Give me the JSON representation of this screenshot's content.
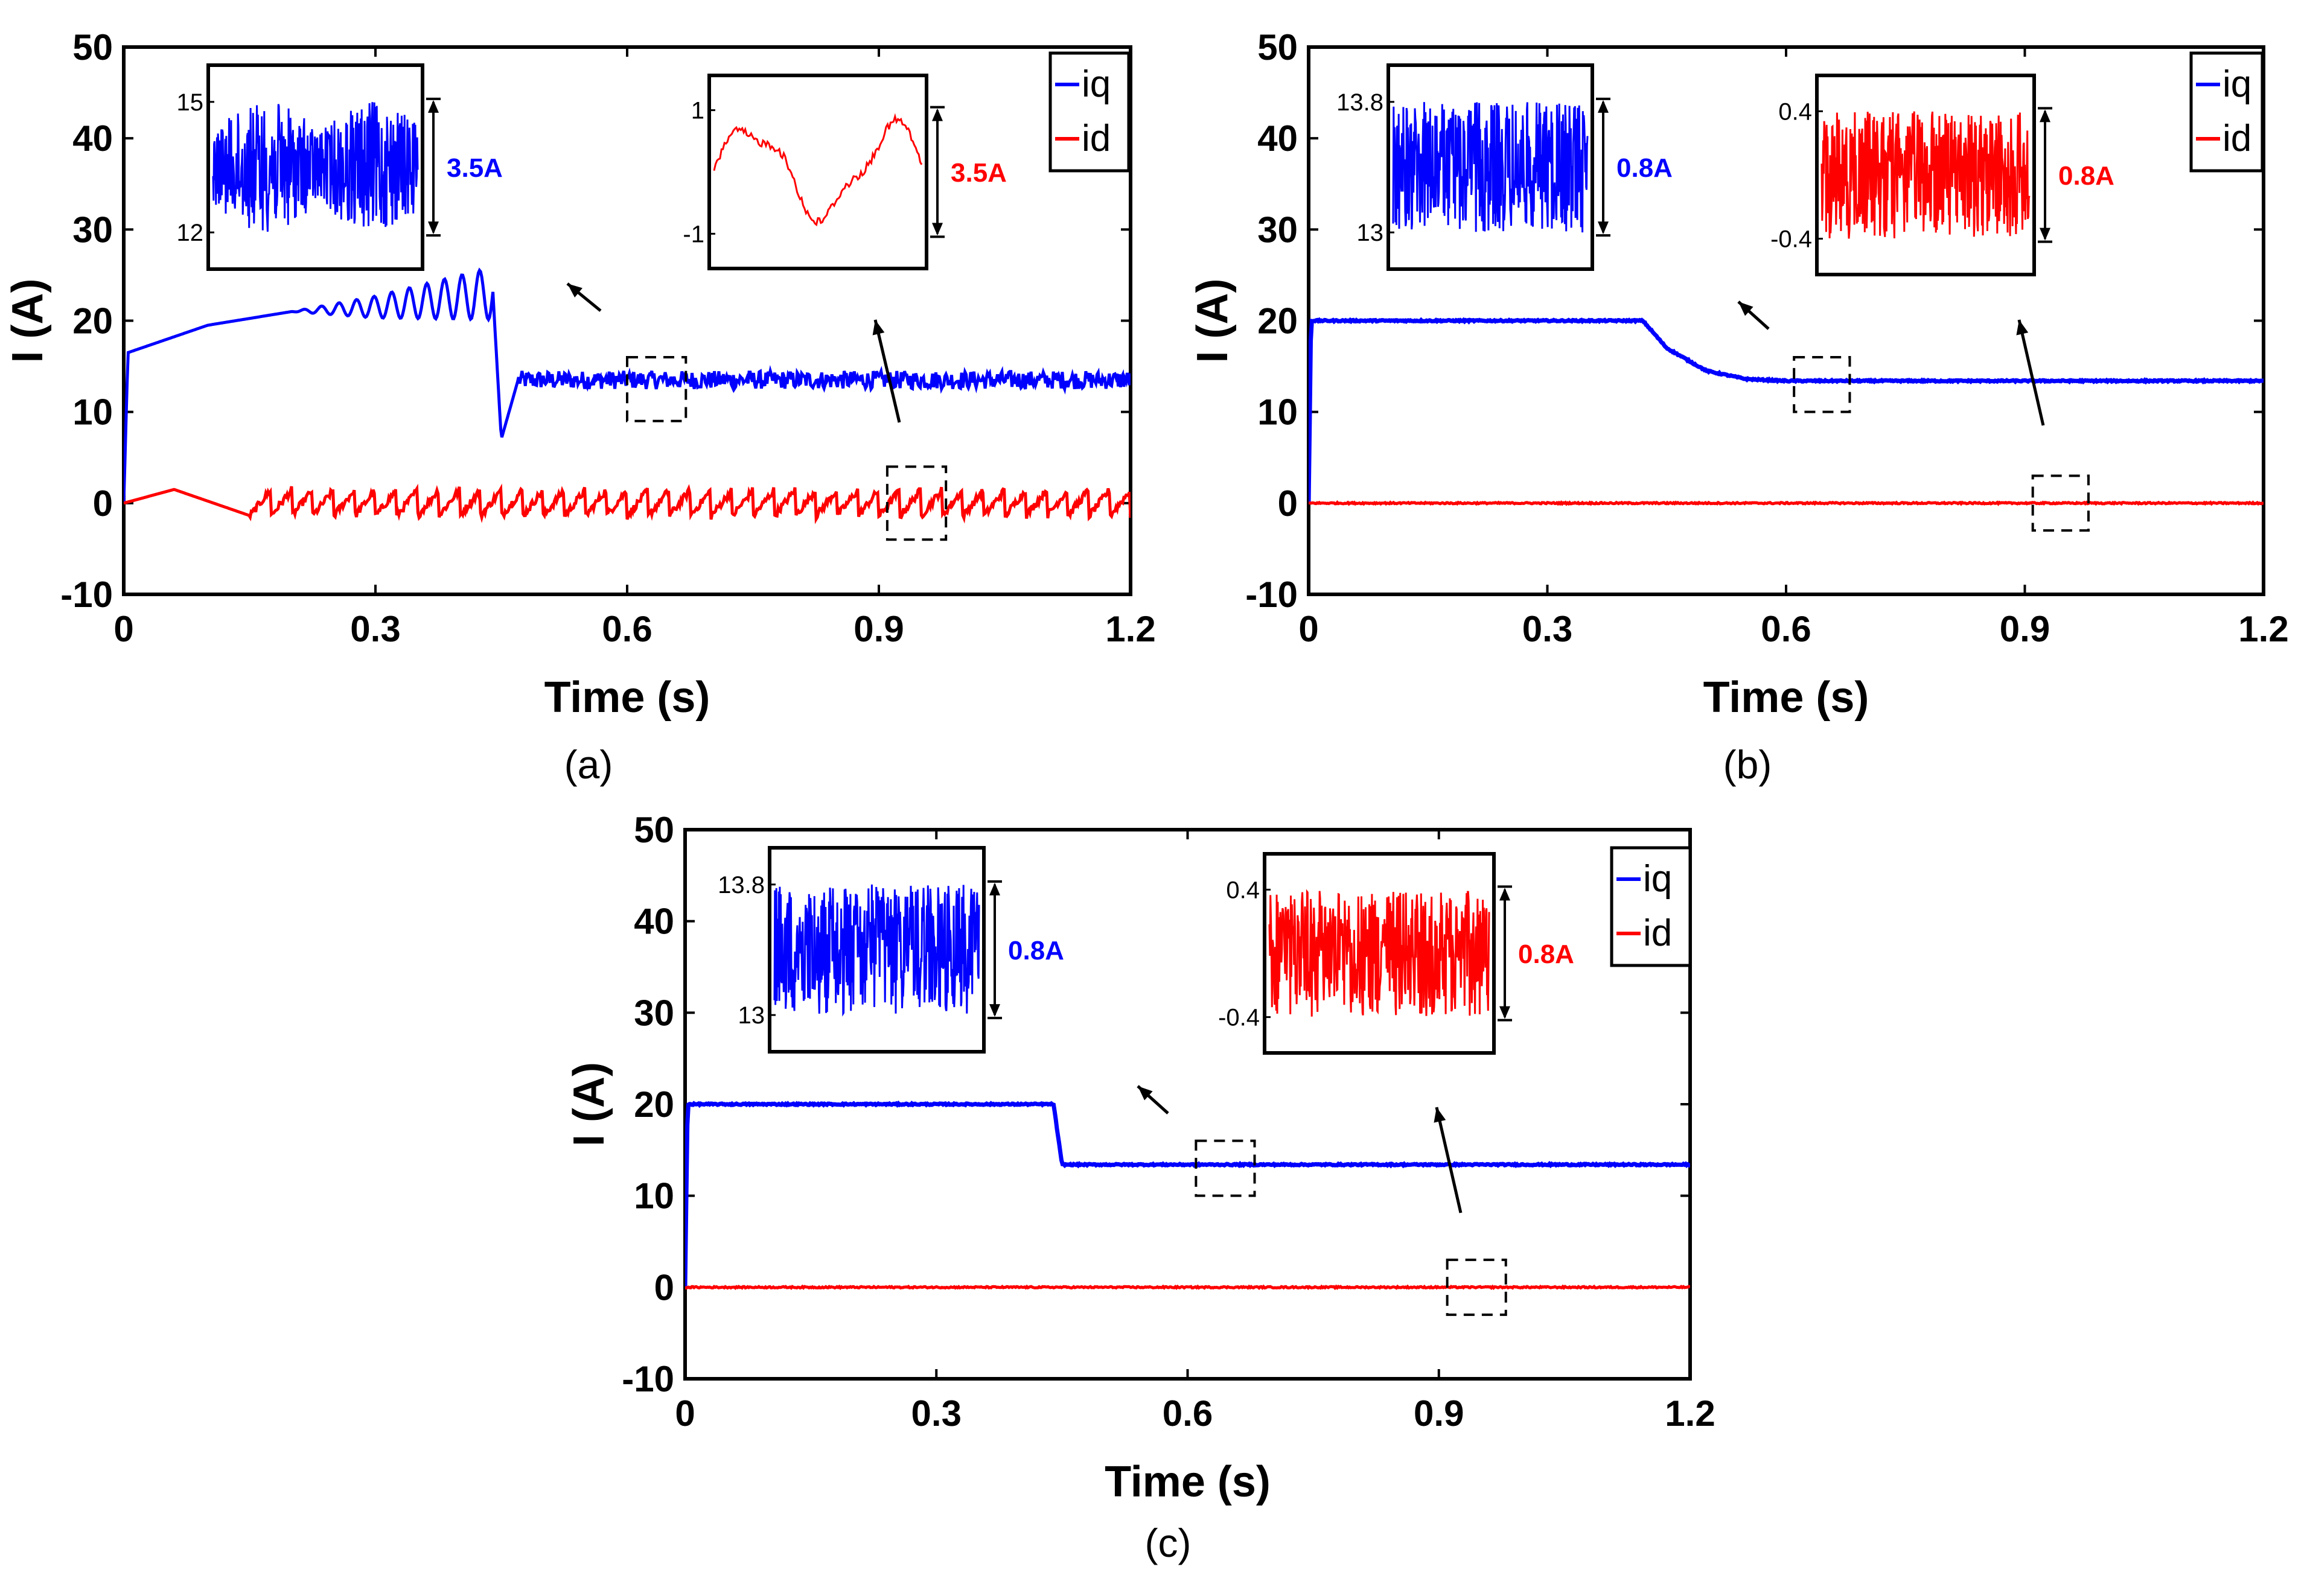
{
  "colors": {
    "iq": "#0000ff",
    "id": "#ff0000",
    "axis": "#000000"
  },
  "chart_data": [
    {
      "id": "a",
      "type": "line",
      "caption": "(a)",
      "xlabel": "Time (s)",
      "ylabel": "I (A)",
      "xlim": [
        0,
        1.2
      ],
      "ylim": [
        -10,
        50
      ],
      "x_ticks": [
        "0",
        "0.3",
        "0.6",
        "0.9",
        "1.2"
      ],
      "y_ticks": [
        "-10",
        "0",
        "10",
        "20",
        "30",
        "40",
        "50"
      ],
      "legend": [
        "iq",
        "id"
      ],
      "series": [
        {
          "name": "iq",
          "description": "rises from ~16.5 to ~21 with growing oscillations, drops at ~0.45 s, then oscillates around 13.5",
          "points": [
            [
              0,
              0
            ],
            [
              0.005,
              16.5
            ],
            [
              0.1,
              19.5
            ],
            [
              0.2,
              21
            ],
            [
              0.3,
              21.5
            ],
            [
              0.44,
              23
            ],
            [
              0.45,
              7
            ],
            [
              0.47,
              13.5
            ],
            [
              1.2,
              13.5
            ]
          ],
          "ripple_after_step": 1.0
        },
        {
          "name": "id",
          "description": "sawtooth oscillation around 0",
          "points": [
            [
              0,
              0
            ],
            [
              0.06,
              1.5
            ],
            [
              0.17,
              -2
            ],
            [
              0.2,
              2
            ],
            [
              0.23,
              -2
            ],
            [
              1.2,
              0
            ]
          ],
          "ripple": 1.2
        }
      ],
      "insets": [
        {
          "series": "iq",
          "y_top_label": "15",
          "y_bottom_label": "12",
          "amplitude_label": "3.5A",
          "zoom_region_x": [
            0.6,
            0.67
          ],
          "zoom_region_y": [
            9,
            16
          ]
        },
        {
          "series": "id",
          "y_top_label": "1",
          "y_bottom_label": "-1",
          "amplitude_label": "3.5A",
          "zoom_region_x": [
            0.91,
            0.98
          ],
          "zoom_region_y": [
            -4,
            4
          ]
        }
      ]
    },
    {
      "id": "b",
      "type": "line",
      "caption": "(b)",
      "xlabel": "Time (s)",
      "ylabel": "I (A)",
      "xlim": [
        0,
        1.2
      ],
      "ylim": [
        -10,
        50
      ],
      "x_ticks": [
        "0",
        "0.3",
        "0.6",
        "0.9",
        "1.2"
      ],
      "y_ticks": [
        "-10",
        "0",
        "10",
        "20",
        "30",
        "40",
        "50"
      ],
      "legend": [
        "iq",
        "id"
      ],
      "series": [
        {
          "name": "iq",
          "description": "steady at 20 until ~0.42 s, exponential decay to ~13.4",
          "points": [
            [
              0,
              0
            ],
            [
              0.003,
              20
            ],
            [
              0.42,
              20
            ],
            [
              0.45,
              17
            ],
            [
              0.5,
              14.5
            ],
            [
              0.55,
              13.6
            ],
            [
              0.6,
              13.4
            ],
            [
              1.2,
              13.4
            ]
          ]
        },
        {
          "name": "id",
          "description": "flat at 0",
          "points": [
            [
              0,
              0
            ],
            [
              1.2,
              0
            ]
          ]
        }
      ],
      "insets": [
        {
          "series": "iq",
          "y_top_label": "13.8",
          "y_bottom_label": "13",
          "amplitude_label": "0.8A",
          "zoom_region_x": [
            0.61,
            0.68
          ],
          "zoom_region_y": [
            10,
            16
          ]
        },
        {
          "series": "id",
          "y_top_label": "0.4",
          "y_bottom_label": "-0.4",
          "amplitude_label": "0.8A",
          "zoom_region_x": [
            0.91,
            0.98
          ],
          "zoom_region_y": [
            -3,
            3
          ]
        }
      ]
    },
    {
      "id": "c",
      "type": "line",
      "caption": "(c)",
      "xlabel": "Time (s)",
      "ylabel": "I (A)",
      "xlim": [
        0,
        1.2
      ],
      "ylim": [
        -10,
        50
      ],
      "x_ticks": [
        "0",
        "0.3",
        "0.6",
        "0.9",
        "1.2"
      ],
      "y_ticks": [
        "-10",
        "0",
        "10",
        "20",
        "30",
        "40",
        "50"
      ],
      "legend": [
        "iq",
        "id"
      ],
      "series": [
        {
          "name": "iq",
          "description": "steady at 20 until ~0.44 s, sharp step down to ~13.4",
          "points": [
            [
              0,
              0
            ],
            [
              0.003,
              20
            ],
            [
              0.44,
              20
            ],
            [
              0.45,
              13.4
            ],
            [
              1.2,
              13.4
            ]
          ]
        },
        {
          "name": "id",
          "description": "flat at 0",
          "points": [
            [
              0,
              0
            ],
            [
              1.2,
              0
            ]
          ]
        }
      ],
      "insets": [
        {
          "series": "iq",
          "y_top_label": "13.8",
          "y_bottom_label": "13",
          "amplitude_label": "0.8A",
          "zoom_region_x": [
            0.61,
            0.68
          ],
          "zoom_region_y": [
            10,
            16
          ]
        },
        {
          "series": "id",
          "y_top_label": "0.4",
          "y_bottom_label": "-0.4",
          "amplitude_label": "0.8A",
          "zoom_region_x": [
            0.91,
            0.98
          ],
          "zoom_region_y": [
            -3,
            3
          ]
        }
      ]
    }
  ]
}
